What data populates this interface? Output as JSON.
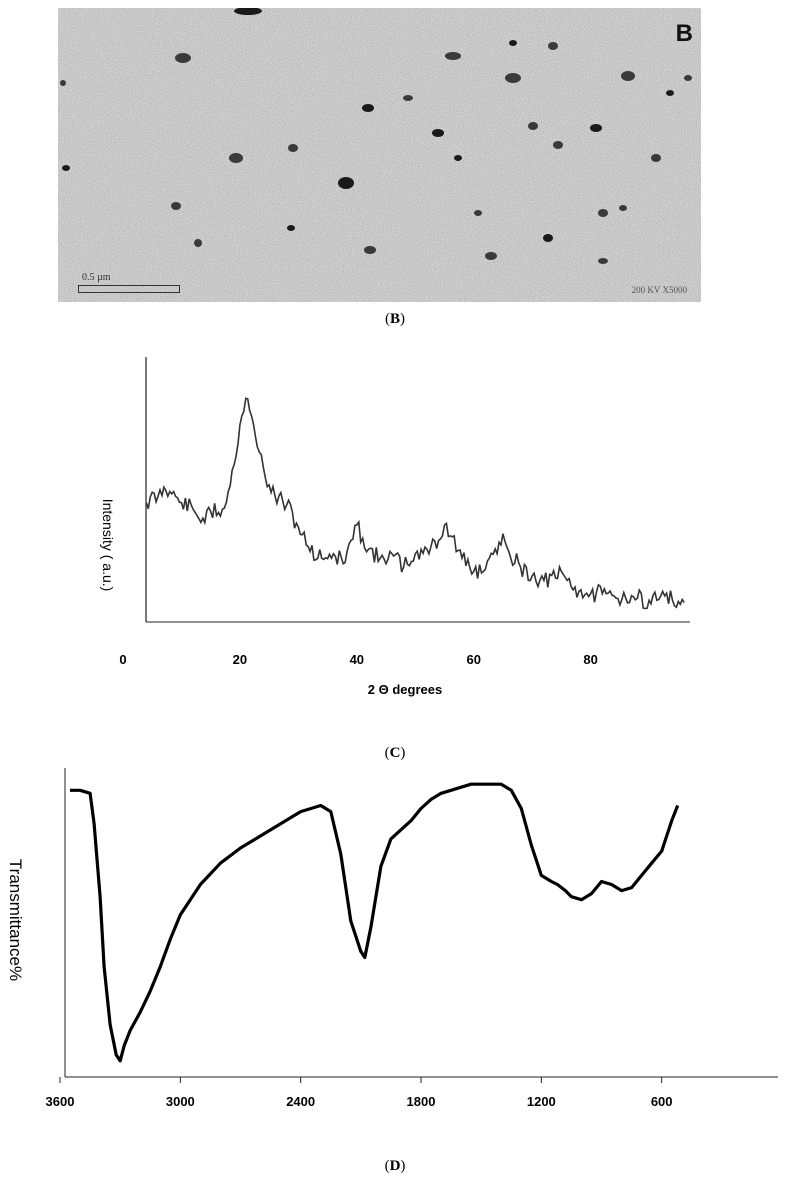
{
  "panel_b": {
    "letter": "B",
    "scale_label": "0.5 µm",
    "magnification": "200 KV X5000",
    "caption_letter": "B"
  },
  "panel_c": {
    "caption_letter": "C"
  },
  "panel_d": {
    "caption_letter": "D"
  },
  "chart_data": [
    {
      "type": "line",
      "ylabel": "Intensity ( a.u.)",
      "xlabel": "2 Θ degrees",
      "xlim": [
        0,
        97
      ],
      "ylim": [
        0,
        1
      ],
      "xticks": [
        0,
        20,
        40,
        60,
        80
      ],
      "grid": false,
      "legend": "none",
      "x": [
        4,
        6,
        7,
        8,
        10,
        12,
        14,
        15,
        17,
        18,
        19,
        20,
        21,
        22,
        23,
        24,
        25,
        26,
        28,
        30,
        32,
        34,
        36,
        38,
        39,
        40,
        41,
        42,
        44,
        46,
        48,
        50,
        52,
        54,
        55,
        56,
        58,
        60,
        62,
        64,
        65,
        66,
        68,
        70,
        72,
        74,
        75,
        76,
        78,
        80,
        82,
        84,
        86,
        88,
        90,
        92,
        94,
        96
      ],
      "values": [
        0.47,
        0.5,
        0.54,
        0.52,
        0.47,
        0.44,
        0.38,
        0.43,
        0.44,
        0.52,
        0.64,
        0.82,
        0.94,
        0.86,
        0.72,
        0.63,
        0.55,
        0.5,
        0.46,
        0.36,
        0.25,
        0.22,
        0.24,
        0.2,
        0.3,
        0.37,
        0.31,
        0.26,
        0.22,
        0.24,
        0.18,
        0.24,
        0.26,
        0.3,
        0.37,
        0.32,
        0.22,
        0.16,
        0.17,
        0.24,
        0.33,
        0.25,
        0.18,
        0.14,
        0.12,
        0.13,
        0.16,
        0.12,
        0.07,
        0.06,
        0.06,
        0.05,
        0.04,
        0.04,
        0.03,
        0.05,
        0.03,
        0.02
      ]
    },
    {
      "type": "line",
      "ylabel": "Transmittance%",
      "xlabel": "",
      "xlim": [
        3600,
        0
      ],
      "ylim": [
        0,
        1
      ],
      "xticks": [
        3600,
        3000,
        2400,
        1800,
        1200,
        600
      ],
      "grid": false,
      "legend": "none",
      "x": [
        3550,
        3500,
        3450,
        3430,
        3400,
        3380,
        3350,
        3320,
        3300,
        3280,
        3250,
        3200,
        3150,
        3100,
        3050,
        3000,
        2900,
        2800,
        2700,
        2600,
        2500,
        2400,
        2300,
        2250,
        2200,
        2150,
        2100,
        2080,
        2050,
        2000,
        1950,
        1900,
        1850,
        1800,
        1750,
        1700,
        1650,
        1600,
        1550,
        1500,
        1450,
        1400,
        1350,
        1300,
        1250,
        1200,
        1150,
        1120,
        1080,
        1050,
        1000,
        950,
        900,
        850,
        800,
        750,
        700,
        650,
        600,
        550,
        520
      ],
      "values": [
        0.93,
        0.93,
        0.92,
        0.82,
        0.58,
        0.35,
        0.16,
        0.06,
        0.04,
        0.09,
        0.14,
        0.2,
        0.27,
        0.35,
        0.44,
        0.52,
        0.62,
        0.69,
        0.74,
        0.78,
        0.82,
        0.86,
        0.88,
        0.86,
        0.72,
        0.5,
        0.4,
        0.38,
        0.48,
        0.68,
        0.77,
        0.8,
        0.83,
        0.87,
        0.9,
        0.92,
        0.93,
        0.94,
        0.95,
        0.95,
        0.95,
        0.95,
        0.93,
        0.87,
        0.75,
        0.65,
        0.63,
        0.62,
        0.6,
        0.58,
        0.57,
        0.59,
        0.63,
        0.62,
        0.6,
        0.61,
        0.65,
        0.69,
        0.73,
        0.83,
        0.88
      ]
    }
  ]
}
